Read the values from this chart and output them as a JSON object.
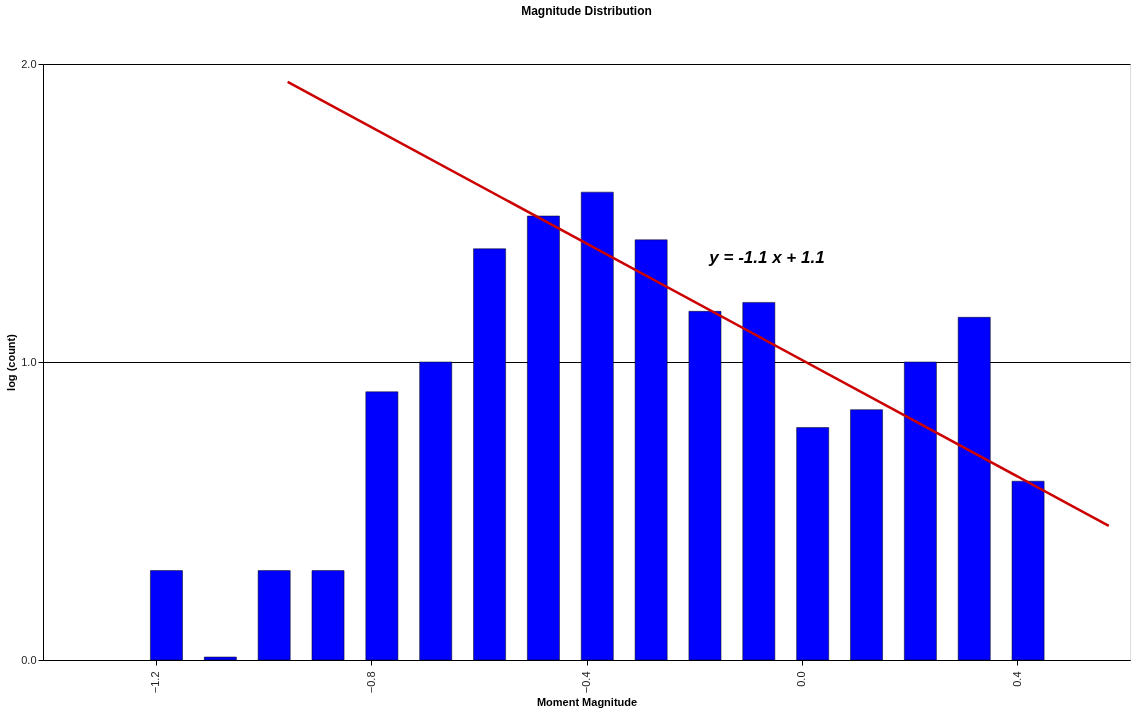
{
  "chart_data": {
    "type": "bar",
    "title": "Magnitude Distribution",
    "xlabel": "Moment Magnitude",
    "ylabel": "log (count)",
    "x": [
      -1.18,
      -1.08,
      -0.98,
      -0.88,
      -0.78,
      -0.68,
      -0.58,
      -0.48,
      -0.38,
      -0.28,
      -0.18,
      -0.08,
      0.02,
      0.12,
      0.22,
      0.32,
      0.42
    ],
    "series": [
      {
        "color": "#0000ff",
        "values": [
          0.3,
          0.01,
          0.3,
          0.3,
          0.9,
          1.0,
          1.38,
          1.49,
          1.57,
          1.41,
          1.17,
          1.2,
          0.78,
          0.84,
          1.0,
          1.15,
          0.6
        ]
      },
      {
        "type": "line",
        "color": "#cc0000",
        "x": [
          -0.955,
          0.57
        ],
        "values": [
          1.94,
          0.45
        ]
      }
    ],
    "xlim": [
      -1.4,
      0.6
    ],
    "xticks": [
      -1.2,
      -0.8,
      -0.4,
      {
        "value": 0,
        "label": "0.0"
      },
      0.4
    ],
    "ylim": [
      0,
      2
    ],
    "yticks": [
      {
        "value": 0,
        "label": "0.0"
      },
      {
        "value": 1,
        "label": "1.0"
      },
      {
        "value": 2,
        "label": "2.0"
      }
    ],
    "grid": "y",
    "marker": "none",
    "line_style": "solid",
    "annotations": [
      "y = -1.1 x + 1.1"
    ]
  }
}
